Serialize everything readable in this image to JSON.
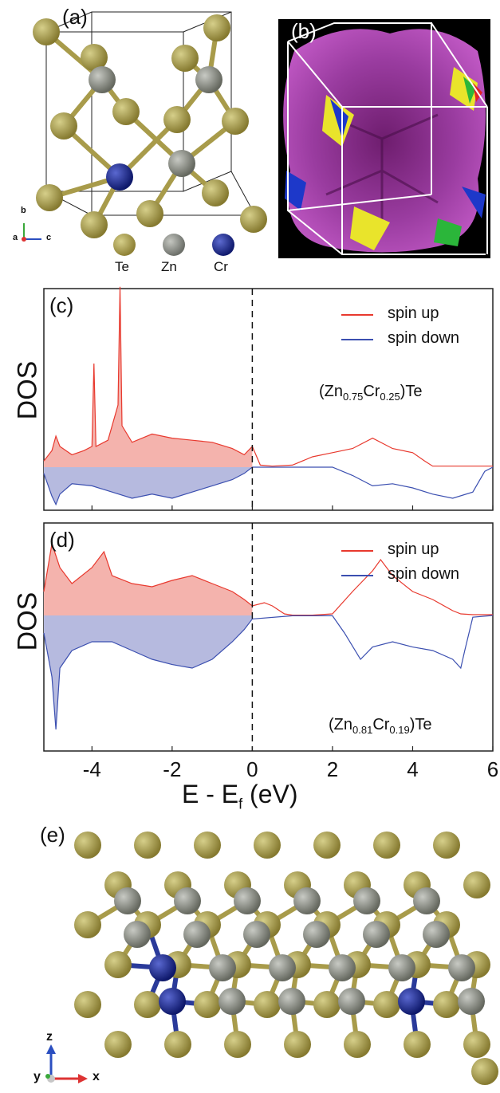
{
  "panels": {
    "a": {
      "label": "(a)",
      "legend": [
        "Te",
        "Zn",
        "Cr"
      ],
      "axes": {
        "b": "b",
        "a": "a",
        "c": "c"
      }
    },
    "b": {
      "label": "(b)"
    },
    "c": {
      "label": "(c)",
      "ylabel": "DOS",
      "formula_pre": "(Zn",
      "formula_s1": "0.75",
      "formula_mid": "Cr",
      "formula_s2": "0.25",
      "formula_post": ")Te"
    },
    "d": {
      "label": "(d)",
      "ylabel": "DOS",
      "formula_pre": "(Zn",
      "formula_s1": "0.81",
      "formula_mid": "Cr",
      "formula_s2": "0.19",
      "formula_post": ")Te"
    },
    "e": {
      "label": "(e)",
      "axes": {
        "z": "z",
        "y": "y",
        "x": "x"
      }
    }
  },
  "dos_xlabel_pre": "E - E",
  "dos_xlabel_sub": "f",
  "dos_xlabel_post": " (eV)",
  "colors": {
    "te": "#a89b4a",
    "zn": "#8a8d86",
    "cr": "#1c2a8c",
    "spin_up": "#e8392e",
    "spin_down": "#3b4fb0",
    "fermi_surface": "#a23ea9"
  },
  "chart_data": [
    {
      "type": "line",
      "panel": "c",
      "xlim": [
        -5.2,
        6
      ],
      "xticks": [
        -4,
        -2,
        0,
        2,
        4,
        6
      ],
      "series": [
        {
          "name": "spin up",
          "x": [
            -5.2,
            -5,
            -4.9,
            -4.8,
            -4.5,
            -4.2,
            -4,
            -3.95,
            -3.9,
            -3.6,
            -3.35,
            -3.3,
            -3.25,
            -3,
            -2.5,
            -2,
            -1.5,
            -1,
            -0.5,
            -0.2,
            0,
            0.2,
            0.5,
            1,
            1.5,
            2,
            2.5,
            3,
            3.5,
            4,
            4.3,
            4.5,
            5,
            5.5,
            6
          ],
          "y": [
            0.3,
            0.8,
            1.5,
            1.0,
            0.6,
            0.8,
            1.0,
            5.0,
            1.0,
            1.3,
            3.0,
            8.7,
            2.0,
            1.2,
            1.6,
            1.4,
            1.3,
            1.2,
            0.9,
            0.6,
            1.0,
            0.1,
            0.05,
            0.1,
            0.5,
            0.7,
            0.9,
            1.4,
            0.9,
            0.7,
            0.3,
            0.05,
            0.05,
            0.05,
            0.05
          ]
        },
        {
          "name": "spin down",
          "x": [
            -5.2,
            -5,
            -4.9,
            -4.8,
            -4.5,
            -4,
            -3.5,
            -3,
            -2.5,
            -2,
            -1.5,
            -1,
            -0.5,
            -0.2,
            0,
            1,
            2,
            2.5,
            3,
            3.5,
            4,
            4.5,
            5,
            5.5,
            5.8,
            6
          ],
          "y": [
            -0.3,
            -1.4,
            -1.8,
            -1.3,
            -0.8,
            -0.9,
            -1.2,
            -1.5,
            -1.3,
            -1.5,
            -1.2,
            -0.9,
            -0.6,
            -0.3,
            0,
            0,
            0,
            -0.4,
            -0.9,
            -0.8,
            -1.0,
            -1.3,
            -1.5,
            -1.2,
            -0.2,
            0
          ]
        }
      ]
    },
    {
      "type": "line",
      "panel": "d",
      "xlim": [
        -5.2,
        6
      ],
      "xticks": [
        -4,
        -2,
        0,
        2,
        4,
        6
      ],
      "series": [
        {
          "name": "spin up",
          "x": [
            -5.2,
            -5,
            -4.8,
            -4.5,
            -4,
            -3.7,
            -3.5,
            -3,
            -2.5,
            -2,
            -1.5,
            -1,
            -0.5,
            -0.2,
            0,
            0.3,
            0.5,
            0.8,
            1,
            1.5,
            2,
            2.5,
            3,
            3.2,
            3.5,
            4,
            4.5,
            5,
            5.2,
            5.5,
            6
          ],
          "y": [
            1.5,
            4.5,
            3.0,
            2.0,
            3.0,
            4.0,
            2.5,
            2.0,
            1.8,
            2.2,
            2.5,
            2.0,
            1.5,
            1.0,
            0.6,
            0.8,
            0.6,
            0.1,
            0.02,
            0.02,
            0.1,
            1.5,
            2.8,
            3.5,
            2.5,
            1.5,
            1.0,
            0.3,
            0.1,
            0.05,
            0.05
          ]
        },
        {
          "name": "spin down",
          "x": [
            -5.2,
            -5,
            -4.9,
            -4.8,
            -4.5,
            -4,
            -3.5,
            -3,
            -2.5,
            -2,
            -1.5,
            -1,
            -0.5,
            -0.2,
            0,
            1,
            2,
            2.3,
            2.7,
            3,
            3.5,
            4,
            4.5,
            5,
            5.2,
            5.3,
            5.5,
            6
          ],
          "y": [
            -1.0,
            -3.5,
            -6.5,
            -3.0,
            -2.0,
            -1.5,
            -1.5,
            -2.0,
            -2.5,
            -2.8,
            -3.0,
            -2.5,
            -1.5,
            -0.8,
            -0.2,
            -0.02,
            -0.02,
            -1.0,
            -2.5,
            -1.8,
            -1.5,
            -1.8,
            -2.0,
            -2.5,
            -3.0,
            -2.0,
            -0.1,
            0
          ]
        }
      ]
    }
  ]
}
